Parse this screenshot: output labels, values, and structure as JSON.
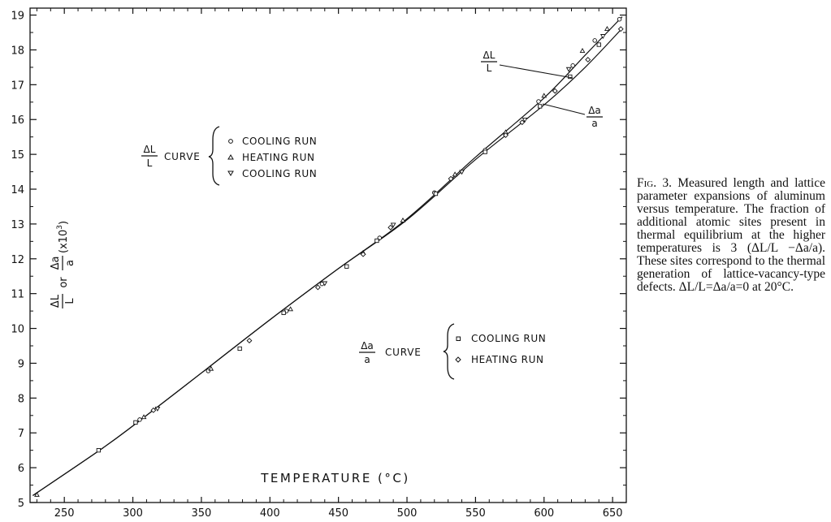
{
  "chart_data": {
    "type": "line",
    "xlabel": "TEMPERATURE (°C)",
    "ylabel": {
      "prefix_num": "ΔL",
      "prefix_den": "L",
      "or": "or",
      "mid_num": "Δa",
      "mid_den": "a",
      "suffix": "(x10",
      "exp": "3",
      "close": ")"
    },
    "xlim": [
      225,
      660
    ],
    "ylim": [
      5,
      19.2
    ],
    "xticks": [
      250,
      300,
      350,
      400,
      450,
      500,
      550,
      600,
      650
    ],
    "yticks": [
      5,
      6,
      7,
      8,
      9,
      10,
      11,
      12,
      13,
      14,
      15,
      16,
      17,
      18,
      19
    ],
    "grid": false,
    "series": [
      {
        "id": "dL_over_L",
        "curve": [
          [
            227,
            5.2
          ],
          [
            275,
            6.48
          ],
          [
            300,
            7.2
          ],
          [
            350,
            8.72
          ],
          [
            400,
            10.25
          ],
          [
            450,
            11.72
          ],
          [
            500,
            13.15
          ],
          [
            550,
            14.92
          ],
          [
            600,
            16.62
          ],
          [
            630,
            17.85
          ],
          [
            657,
            18.95
          ]
        ],
        "cooling_run": [
          [
            305,
            7.38
          ],
          [
            355,
            8.78
          ],
          [
            412,
            10.5
          ],
          [
            438,
            11.28
          ],
          [
            480,
            12.6
          ],
          [
            520,
            13.9
          ],
          [
            557,
            15.12
          ],
          [
            596,
            16.52
          ],
          [
            621,
            17.55
          ],
          [
            637,
            18.27
          ],
          [
            655,
            18.88
          ]
        ],
        "heating_run": [
          [
            230,
            5.22
          ],
          [
            308,
            7.45
          ],
          [
            357,
            8.84
          ],
          [
            415,
            10.55
          ],
          [
            468,
            12.17
          ],
          [
            497,
            13.1
          ],
          [
            535,
            14.42
          ],
          [
            572,
            15.63
          ],
          [
            600,
            16.68
          ],
          [
            628,
            17.97
          ],
          [
            646,
            18.6
          ]
        ],
        "cooling_run_2": [
          [
            318,
            7.7
          ],
          [
            440,
            11.3
          ],
          [
            490,
            12.98
          ],
          [
            540,
            14.5
          ],
          [
            586,
            16.0
          ],
          [
            618,
            17.45
          ],
          [
            643,
            18.4
          ]
        ]
      },
      {
        "id": "da_over_a",
        "curve": [
          [
            227,
            5.2
          ],
          [
            275,
            6.48
          ],
          [
            300,
            7.2
          ],
          [
            350,
            8.72
          ],
          [
            400,
            10.25
          ],
          [
            450,
            11.72
          ],
          [
            500,
            13.12
          ],
          [
            550,
            14.85
          ],
          [
            600,
            16.42
          ],
          [
            630,
            17.5
          ],
          [
            657,
            18.62
          ]
        ],
        "cooling_run": [
          [
            275,
            6.5
          ],
          [
            302,
            7.3
          ],
          [
            378,
            9.42
          ],
          [
            410,
            10.45
          ],
          [
            456,
            11.78
          ],
          [
            478,
            12.52
          ],
          [
            521,
            13.87
          ],
          [
            557,
            15.07
          ],
          [
            597,
            16.38
          ],
          [
            619,
            17.23
          ],
          [
            640,
            18.15
          ]
        ],
        "heating_run": [
          [
            315,
            7.65
          ],
          [
            385,
            9.65
          ],
          [
            435,
            11.18
          ],
          [
            468,
            12.13
          ],
          [
            488,
            12.9
          ],
          [
            532,
            14.3
          ],
          [
            572,
            15.55
          ],
          [
            584,
            15.92
          ],
          [
            608,
            16.82
          ],
          [
            632,
            17.72
          ],
          [
            656,
            18.6
          ]
        ]
      }
    ],
    "annotations": {
      "dL_label": {
        "num": "ΔL",
        "den": "L"
      },
      "da_label": {
        "num": "Δa",
        "den": "a"
      }
    },
    "legend": {
      "dL": {
        "num": "ΔL",
        "den": "L",
        "word": "CURVE",
        "entries": [
          "COOLING  RUN",
          "HEATING  RUN",
          "COOLING  RUN"
        ]
      },
      "da": {
        "num": "Δa",
        "den": "a",
        "word": "CURVE",
        "entries": [
          "COOLING  RUN",
          "HEATING  RUN"
        ]
      }
    }
  },
  "caption": {
    "fig": "Fig. 3.",
    "text": " Measured length and lattice parameter expansions of aluminum versus temperature. The fraction of additional atomic sites present in thermal equilibrium at the higher temperatures is 3 (ΔL/L −Δa/a). These sites correspond to the thermal generation of lattice-vacancy-type defects. ΔL/L=Δa/a=0 at 20°C."
  }
}
